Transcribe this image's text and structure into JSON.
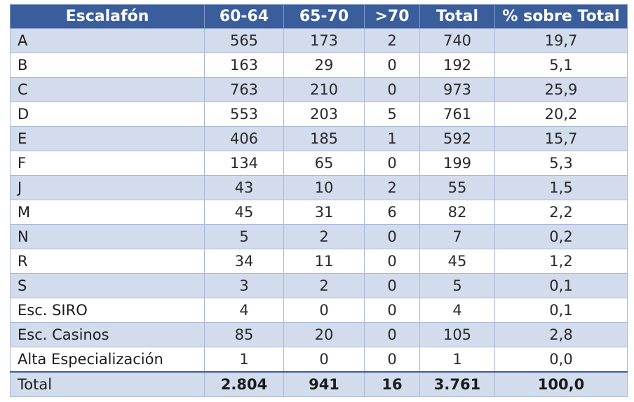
{
  "table": {
    "headers": [
      "Escalafón",
      "60-64",
      "65-70",
      ">70",
      "Total",
      "% sobre Total"
    ],
    "rows": [
      [
        "A",
        "565",
        "173",
        "2",
        "740",
        "19,7"
      ],
      [
        "B",
        "163",
        "29",
        "0",
        "192",
        "5,1"
      ],
      [
        "C",
        "763",
        "210",
        "0",
        "973",
        "25,9"
      ],
      [
        "D",
        "553",
        "203",
        "5",
        "761",
        "20,2"
      ],
      [
        "E",
        "406",
        "185",
        "1",
        "592",
        "15,7"
      ],
      [
        "F",
        "134",
        "65",
        "0",
        "199",
        "5,3"
      ],
      [
        "J",
        "43",
        "10",
        "2",
        "55",
        "1,5"
      ],
      [
        "M",
        "45",
        "31",
        "6",
        "82",
        "2,2"
      ],
      [
        "N",
        "5",
        "2",
        "0",
        "7",
        "0,2"
      ],
      [
        "R",
        "34",
        "11",
        "0",
        "45",
        "1,2"
      ],
      [
        "S",
        "3",
        "2",
        "0",
        "5",
        "0,1"
      ],
      [
        "Esc. SIRO",
        "4",
        "0",
        "0",
        "4",
        "0,1"
      ],
      [
        "Esc. Casinos",
        "85",
        "20",
        "0",
        "105",
        "2,8"
      ],
      [
        "Alta Especialización",
        "1",
        "0",
        "0",
        "1",
        "0,0"
      ]
    ],
    "total_row": [
      "Total",
      "2.804",
      "941",
      "16",
      "3.761",
      "100,0"
    ]
  },
  "colors": {
    "header_bg": "#3a5e9c",
    "band_bg": "#d3dcec",
    "plain_bg": "#ffffff"
  }
}
